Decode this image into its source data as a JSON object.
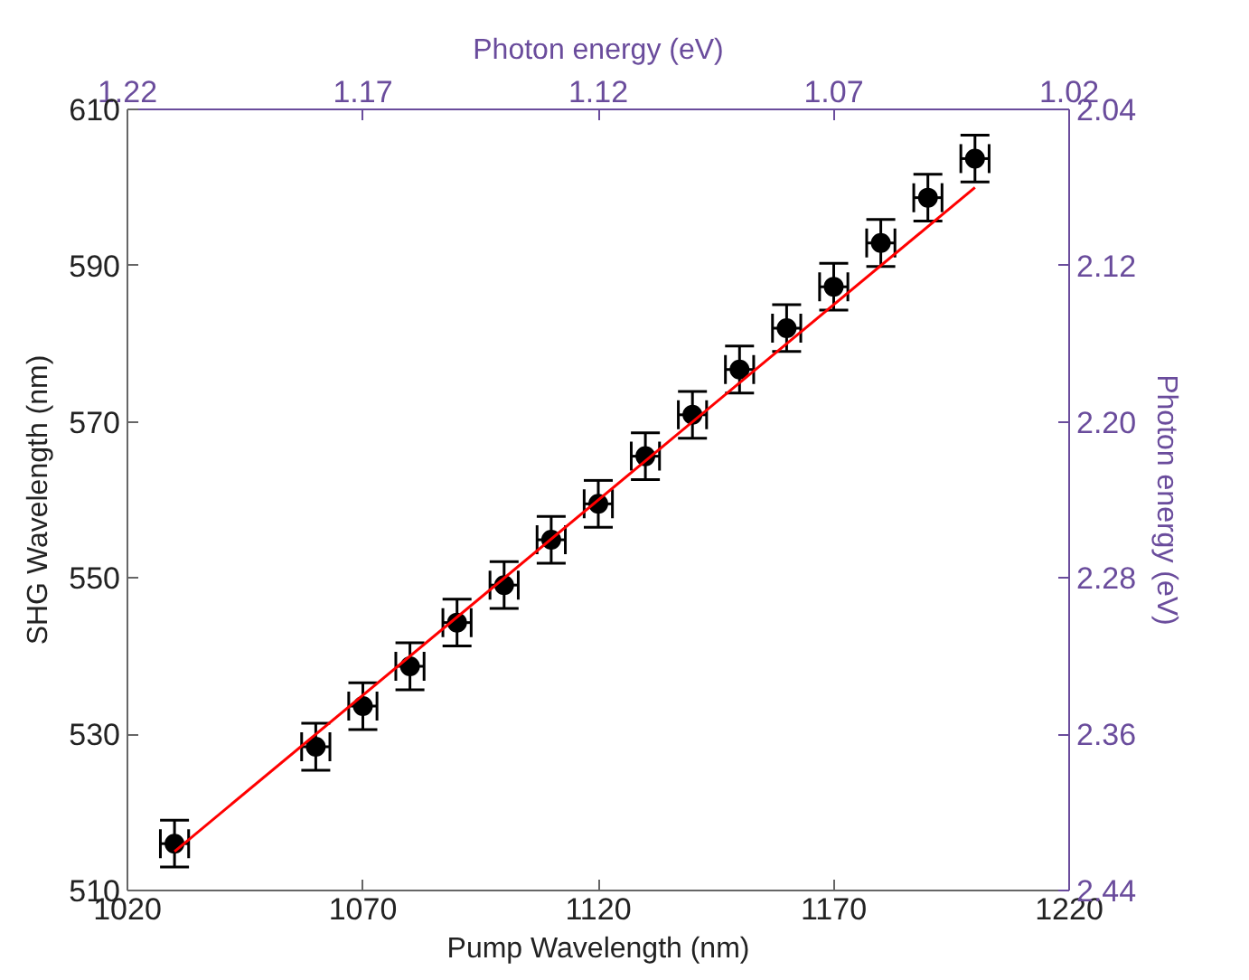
{
  "chart_data": {
    "type": "scatter",
    "xlabel": "Pump Wavelength (nm)",
    "ylabel": "SHG Wavelength (nm)",
    "x2label": "Photon energy (eV)",
    "y2label": "Photon energy (eV)",
    "xlim": [
      1020,
      1220
    ],
    "xticks": [
      1020,
      1070,
      1120,
      1170,
      1220
    ],
    "ylim": [
      510,
      610
    ],
    "yticks": [
      510,
      530,
      550,
      570,
      590,
      610
    ],
    "x2lim": [
      1.22,
      1.02
    ],
    "x2ticks": [
      1.22,
      1.17,
      1.12,
      1.07,
      1.02
    ],
    "y2lim": [
      2.44,
      2.04
    ],
    "y2ticks": [
      2.44,
      2.36,
      2.28,
      {
        "value": 2.2,
        "label": "2.20"
      },
      2.12,
      2.04
    ],
    "grid": false,
    "marker": "circle",
    "series": [
      {
        "color": "#000000",
        "x": [
          1030,
          1060,
          1070,
          1080,
          1090,
          1100,
          1110,
          1120,
          1130,
          1140,
          1150,
          1160,
          1170,
          1180,
          1190,
          1200
        ],
        "values": [
          516,
          528.4,
          533.6,
          538.7,
          544.3,
          549.1,
          554.9,
          559.5,
          565.6,
          570.9,
          576.7,
          582,
          587.3,
          592.9,
          598.7,
          603.7
        ],
        "errors": [
          3,
          3,
          3,
          3,
          3,
          3,
          3,
          3,
          3,
          3,
          3,
          3,
          3,
          3,
          3,
          3
        ],
        "xerrors": [
          3,
          3,
          3,
          3,
          3,
          3,
          3,
          3,
          3,
          3,
          3,
          3,
          3,
          3,
          3,
          3
        ]
      },
      {
        "type": "line",
        "color": "#ff0000",
        "x": [
          1030,
          1200
        ],
        "values": [
          515,
          600
        ],
        "line_style": "solid",
        "marker": "none"
      }
    ]
  }
}
